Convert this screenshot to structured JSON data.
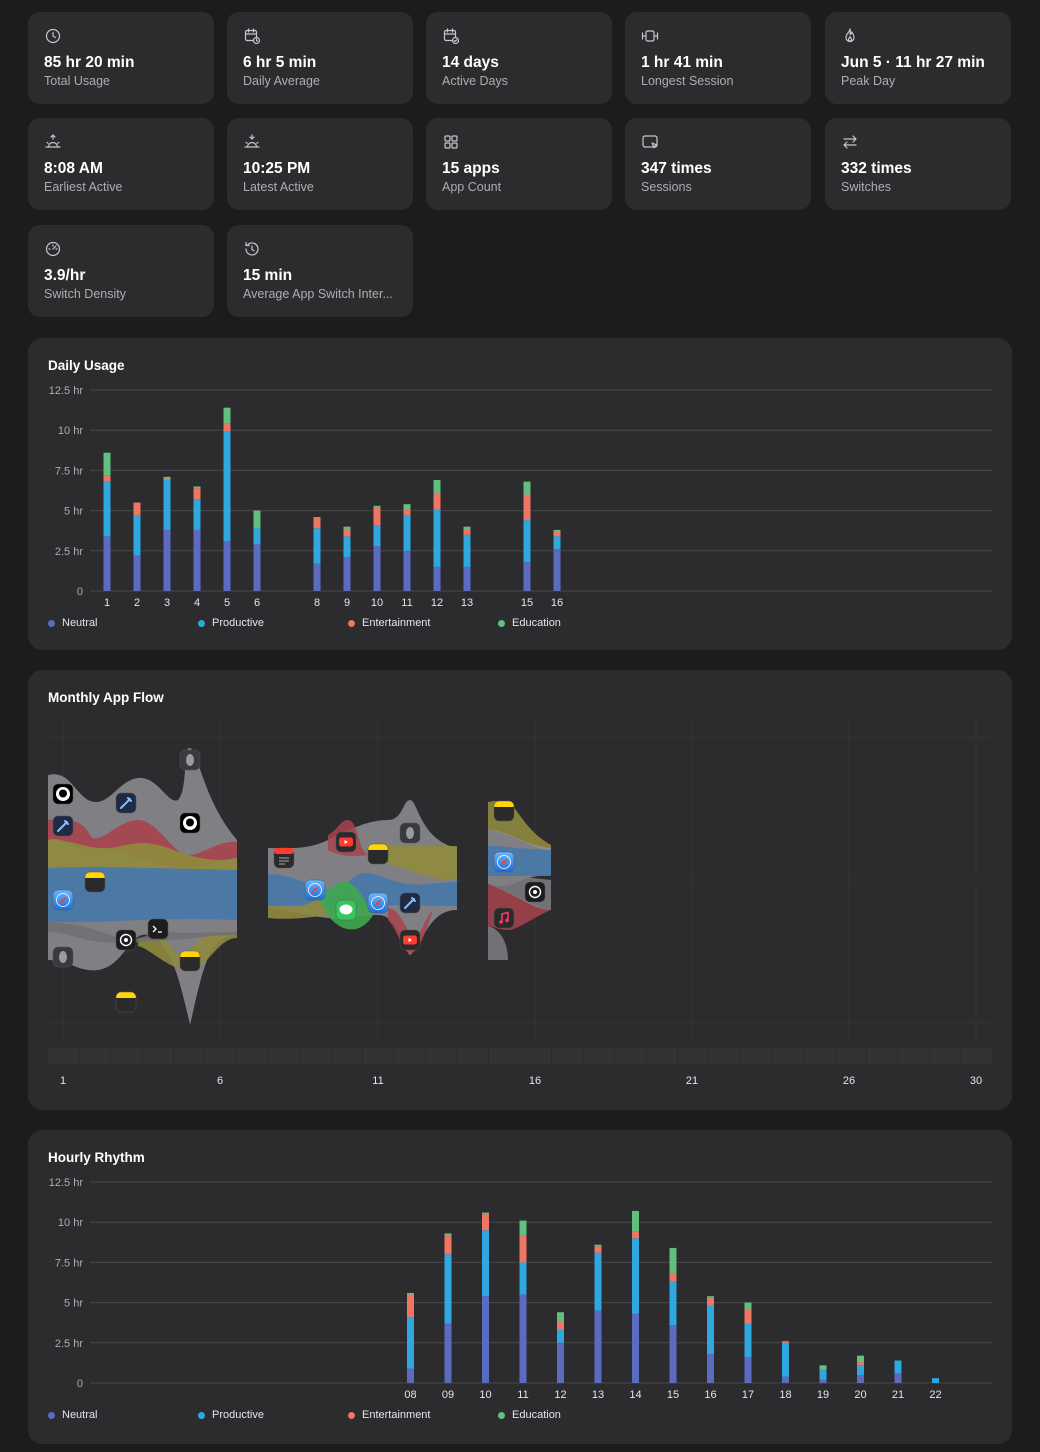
{
  "stats": [
    {
      "icon": "clock-icon",
      "value": "85 hr 20 min",
      "label": "Total Usage"
    },
    {
      "icon": "calendar-clock-icon",
      "value": "6 hr 5 min",
      "label": "Daily Average"
    },
    {
      "icon": "calendar-check-icon",
      "value": "14 days",
      "label": "Active Days"
    },
    {
      "icon": "timeline-icon",
      "value": "1 hr 41 min",
      "label": "Longest Session"
    },
    {
      "icon": "flame-icon",
      "value": "Jun 5 · 11 hr 27 min",
      "label": "Peak Day"
    },
    {
      "icon": "sunrise-icon",
      "value": "8:08 AM",
      "label": "Earliest Active"
    },
    {
      "icon": "sunset-icon",
      "value": "10:25 PM",
      "label": "Latest Active"
    },
    {
      "icon": "grid-icon",
      "value": "15 apps",
      "label": "App Count"
    },
    {
      "icon": "window-cursor-icon",
      "value": "347 times",
      "label": "Sessions"
    },
    {
      "icon": "switch-arrows-icon",
      "value": "332 times",
      "label": "Switches"
    },
    {
      "icon": "gauge-icon",
      "value": "3.9/hr",
      "label": "Switch Density"
    },
    {
      "icon": "history-icon",
      "value": "15 min",
      "label": "Average App Switch Inter..."
    }
  ],
  "colors": {
    "neutral": "#5b6bc0",
    "productive": "#2fa8e0",
    "entertainment": "#ef7565",
    "education": "#62c07f",
    "card": "#2c2c2e",
    "background": "#1c1c1e"
  },
  "categories": [
    "Neutral",
    "Productive",
    "Entertainment",
    "Education"
  ],
  "daily": {
    "title": "Daily Usage",
    "chart_data": {
      "type": "bar",
      "stacked": true,
      "yticks": [
        "0",
        "2.5 hr",
        "5 hr",
        "7.5 hr",
        "10 hr",
        "12.5 hr"
      ],
      "ylim": [
        0,
        12.5
      ],
      "xlim": [
        1,
        30
      ],
      "days": [
        1,
        2,
        3,
        4,
        5,
        6,
        8,
        9,
        10,
        11,
        12,
        13,
        15,
        16
      ],
      "series": [
        {
          "name": "Neutral",
          "values": [
            3.4,
            2.2,
            3.8,
            3.8,
            3.1,
            2.9,
            1.7,
            2.1,
            2.8,
            2.5,
            1.5,
            1.5,
            1.8,
            2.6
          ]
        },
        {
          "name": "Productive",
          "values": [
            3.4,
            2.5,
            3.1,
            1.9,
            6.8,
            1.0,
            2.2,
            1.3,
            1.3,
            2.2,
            3.6,
            2.0,
            2.6,
            0.8
          ]
        },
        {
          "name": "Entertainment",
          "values": [
            0.4,
            0.8,
            0.1,
            0.7,
            0.5,
            0.0,
            0.7,
            0.4,
            1.1,
            0.4,
            1.0,
            0.3,
            1.6,
            0.3
          ]
        },
        {
          "name": "Education",
          "values": [
            1.4,
            0.0,
            0.1,
            0.1,
            1.0,
            1.1,
            0.0,
            0.2,
            0.1,
            0.3,
            0.8,
            0.2,
            0.8,
            0.1
          ]
        }
      ]
    }
  },
  "flow": {
    "title": "Monthly App Flow",
    "xticks": [
      "1",
      "6",
      "11",
      "16",
      "21",
      "26",
      "30"
    ],
    "apps": [
      "github-icon",
      "xcode-icon",
      "notes-icon",
      "safari-icon",
      "xcode-icon",
      "notes-icon",
      "chatgpt-icon",
      "terminal-icon",
      "github-icon",
      "calendar-icon",
      "youtube-icon",
      "notes-icon",
      "messages-icon",
      "safari-icon",
      "youtube-icon",
      "music-icon"
    ]
  },
  "hourly": {
    "title": "Hourly Rhythm",
    "chart_data": {
      "type": "bar",
      "stacked": true,
      "yticks": [
        "0",
        "2.5 hr",
        "5 hr",
        "7.5 hr",
        "10 hr",
        "12.5 hr"
      ],
      "ylim": [
        0,
        12.5
      ],
      "hours": [
        "08",
        "09",
        "10",
        "11",
        "12",
        "13",
        "14",
        "15",
        "16",
        "17",
        "18",
        "19",
        "20",
        "21",
        "22"
      ],
      "series": [
        {
          "name": "Neutral",
          "values": [
            0.9,
            3.7,
            5.4,
            5.5,
            2.5,
            4.5,
            4.3,
            3.6,
            1.8,
            1.6,
            0.4,
            0.2,
            0.5,
            0.6,
            0.0
          ]
        },
        {
          "name": "Productive",
          "values": [
            3.2,
            4.3,
            4.1,
            2.0,
            0.8,
            3.6,
            4.7,
            2.7,
            3.0,
            2.1,
            2.1,
            0.6,
            0.6,
            0.8,
            0.3
          ]
        },
        {
          "name": "Entertainment",
          "values": [
            1.4,
            1.2,
            1.0,
            1.7,
            0.5,
            0.4,
            0.4,
            0.5,
            0.5,
            0.9,
            0.1,
            0.0,
            0.2,
            0.0,
            0.0
          ]
        },
        {
          "name": "Education",
          "values": [
            0.1,
            0.1,
            0.1,
            0.9,
            0.6,
            0.1,
            1.3,
            1.6,
            0.1,
            0.4,
            0.0,
            0.3,
            0.4,
            0.0,
            0.0
          ]
        }
      ]
    }
  }
}
